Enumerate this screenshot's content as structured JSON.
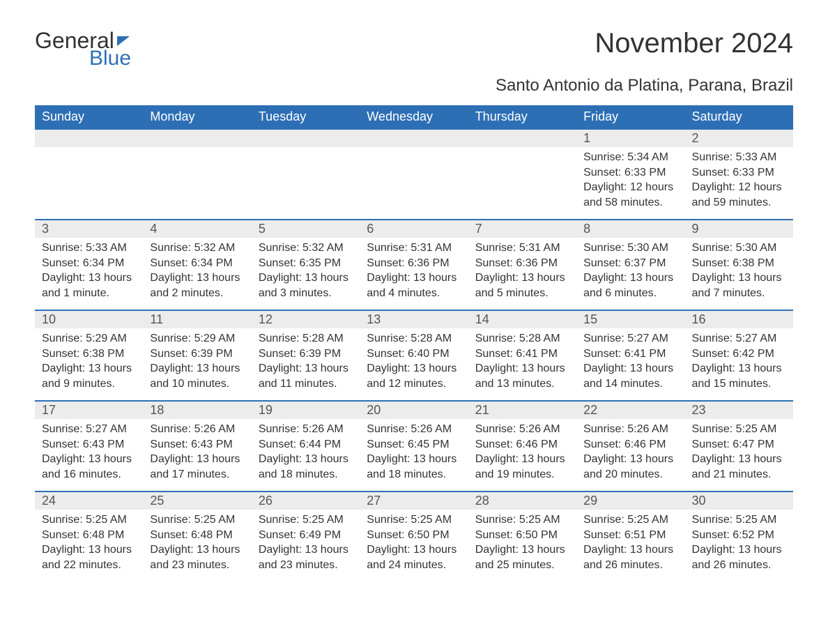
{
  "logo": {
    "general": "General",
    "blue": "Blue"
  },
  "title": "November 2024",
  "subtitle": "Santo Antonio da Platina, Parana, Brazil",
  "colors": {
    "header_bg": "#2d6fb5",
    "header_text": "#ffffff",
    "daynum_bg": "#ececec",
    "text": "#333333",
    "row_border": "#2d6fb5",
    "page_bg": "#ffffff"
  },
  "day_labels": [
    "Sunday",
    "Monday",
    "Tuesday",
    "Wednesday",
    "Thursday",
    "Friday",
    "Saturday"
  ],
  "weeks": [
    [
      null,
      null,
      null,
      null,
      null,
      {
        "n": "1",
        "sr": "5:34 AM",
        "ss": "6:33 PM",
        "dl": "12 hours and 58 minutes."
      },
      {
        "n": "2",
        "sr": "5:33 AM",
        "ss": "6:33 PM",
        "dl": "12 hours and 59 minutes."
      }
    ],
    [
      {
        "n": "3",
        "sr": "5:33 AM",
        "ss": "6:34 PM",
        "dl": "13 hours and 1 minute."
      },
      {
        "n": "4",
        "sr": "5:32 AM",
        "ss": "6:34 PM",
        "dl": "13 hours and 2 minutes."
      },
      {
        "n": "5",
        "sr": "5:32 AM",
        "ss": "6:35 PM",
        "dl": "13 hours and 3 minutes."
      },
      {
        "n": "6",
        "sr": "5:31 AM",
        "ss": "6:36 PM",
        "dl": "13 hours and 4 minutes."
      },
      {
        "n": "7",
        "sr": "5:31 AM",
        "ss": "6:36 PM",
        "dl": "13 hours and 5 minutes."
      },
      {
        "n": "8",
        "sr": "5:30 AM",
        "ss": "6:37 PM",
        "dl": "13 hours and 6 minutes."
      },
      {
        "n": "9",
        "sr": "5:30 AM",
        "ss": "6:38 PM",
        "dl": "13 hours and 7 minutes."
      }
    ],
    [
      {
        "n": "10",
        "sr": "5:29 AM",
        "ss": "6:38 PM",
        "dl": "13 hours and 9 minutes."
      },
      {
        "n": "11",
        "sr": "5:29 AM",
        "ss": "6:39 PM",
        "dl": "13 hours and 10 minutes."
      },
      {
        "n": "12",
        "sr": "5:28 AM",
        "ss": "6:39 PM",
        "dl": "13 hours and 11 minutes."
      },
      {
        "n": "13",
        "sr": "5:28 AM",
        "ss": "6:40 PM",
        "dl": "13 hours and 12 minutes."
      },
      {
        "n": "14",
        "sr": "5:28 AM",
        "ss": "6:41 PM",
        "dl": "13 hours and 13 minutes."
      },
      {
        "n": "15",
        "sr": "5:27 AM",
        "ss": "6:41 PM",
        "dl": "13 hours and 14 minutes."
      },
      {
        "n": "16",
        "sr": "5:27 AM",
        "ss": "6:42 PM",
        "dl": "13 hours and 15 minutes."
      }
    ],
    [
      {
        "n": "17",
        "sr": "5:27 AM",
        "ss": "6:43 PM",
        "dl": "13 hours and 16 minutes."
      },
      {
        "n": "18",
        "sr": "5:26 AM",
        "ss": "6:43 PM",
        "dl": "13 hours and 17 minutes."
      },
      {
        "n": "19",
        "sr": "5:26 AM",
        "ss": "6:44 PM",
        "dl": "13 hours and 18 minutes."
      },
      {
        "n": "20",
        "sr": "5:26 AM",
        "ss": "6:45 PM",
        "dl": "13 hours and 18 minutes."
      },
      {
        "n": "21",
        "sr": "5:26 AM",
        "ss": "6:46 PM",
        "dl": "13 hours and 19 minutes."
      },
      {
        "n": "22",
        "sr": "5:26 AM",
        "ss": "6:46 PM",
        "dl": "13 hours and 20 minutes."
      },
      {
        "n": "23",
        "sr": "5:25 AM",
        "ss": "6:47 PM",
        "dl": "13 hours and 21 minutes."
      }
    ],
    [
      {
        "n": "24",
        "sr": "5:25 AM",
        "ss": "6:48 PM",
        "dl": "13 hours and 22 minutes."
      },
      {
        "n": "25",
        "sr": "5:25 AM",
        "ss": "6:48 PM",
        "dl": "13 hours and 23 minutes."
      },
      {
        "n": "26",
        "sr": "5:25 AM",
        "ss": "6:49 PM",
        "dl": "13 hours and 23 minutes."
      },
      {
        "n": "27",
        "sr": "5:25 AM",
        "ss": "6:50 PM",
        "dl": "13 hours and 24 minutes."
      },
      {
        "n": "28",
        "sr": "5:25 AM",
        "ss": "6:50 PM",
        "dl": "13 hours and 25 minutes."
      },
      {
        "n": "29",
        "sr": "5:25 AM",
        "ss": "6:51 PM",
        "dl": "13 hours and 26 minutes."
      },
      {
        "n": "30",
        "sr": "5:25 AM",
        "ss": "6:52 PM",
        "dl": "13 hours and 26 minutes."
      }
    ]
  ],
  "labels": {
    "sunrise": "Sunrise: ",
    "sunset": "Sunset: ",
    "daylight": "Daylight: "
  }
}
